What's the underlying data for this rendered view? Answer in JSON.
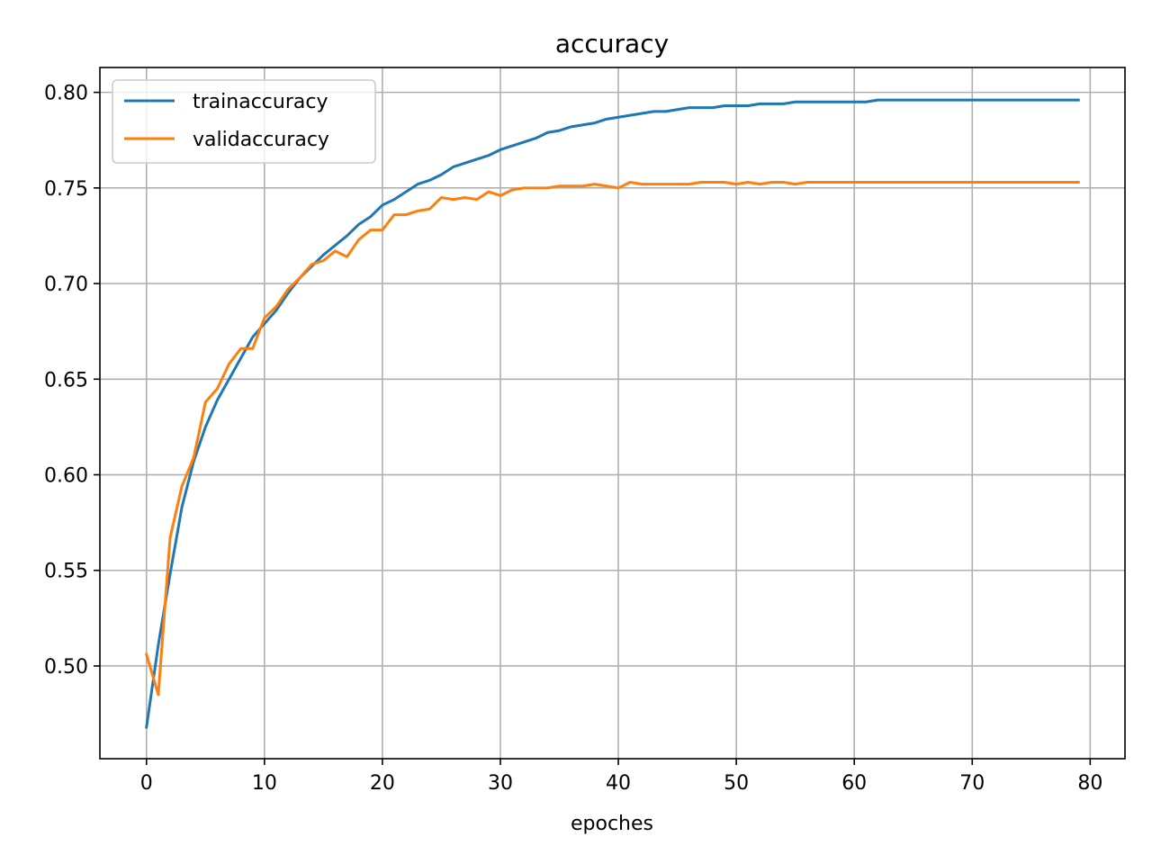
{
  "chart_data": {
    "type": "line",
    "title": "accuracy",
    "xlabel": "epoches",
    "ylabel": "",
    "xlim": [
      -3.95,
      82.95
    ],
    "ylim": [
      0.4515,
      0.813
    ],
    "xticks": [
      0,
      10,
      20,
      30,
      40,
      50,
      60,
      70,
      80
    ],
    "xtick_labels": [
      "0",
      "10",
      "20",
      "30",
      "40",
      "50",
      "60",
      "70",
      "80"
    ],
    "yticks": [
      0.5,
      0.55,
      0.6,
      0.65,
      0.7,
      0.75,
      0.8
    ],
    "ytick_labels": [
      "0.50",
      "0.55",
      "0.60",
      "0.65",
      "0.70",
      "0.75",
      "0.80"
    ],
    "grid": true,
    "legend": "upper left",
    "series": [
      {
        "name": "trainaccuracy",
        "color": "#1f77b4",
        "values": [
          0.468,
          0.511,
          0.548,
          0.583,
          0.607,
          0.625,
          0.639,
          0.65,
          0.661,
          0.672,
          0.679,
          0.686,
          0.695,
          0.703,
          0.709,
          0.715,
          0.72,
          0.725,
          0.731,
          0.735,
          0.741,
          0.744,
          0.748,
          0.752,
          0.754,
          0.757,
          0.761,
          0.763,
          0.765,
          0.767,
          0.77,
          0.772,
          0.774,
          0.776,
          0.779,
          0.78,
          0.782,
          0.783,
          0.784,
          0.786,
          0.787,
          0.788,
          0.789,
          0.79,
          0.79,
          0.791,
          0.792,
          0.792,
          0.792,
          0.793,
          0.793,
          0.793,
          0.794,
          0.794,
          0.794,
          0.795,
          0.795,
          0.795,
          0.795,
          0.795,
          0.795,
          0.795,
          0.796,
          0.796,
          0.796,
          0.796,
          0.796,
          0.796,
          0.796,
          0.796,
          0.796,
          0.796,
          0.796,
          0.796,
          0.796,
          0.796,
          0.796,
          0.796,
          0.796,
          0.796
        ]
      },
      {
        "name": "validaccuracy",
        "color": "#ff7f0e",
        "values": [
          0.506,
          0.485,
          0.567,
          0.594,
          0.609,
          0.638,
          0.645,
          0.658,
          0.666,
          0.666,
          0.682,
          0.688,
          0.697,
          0.703,
          0.71,
          0.712,
          0.717,
          0.714,
          0.723,
          0.728,
          0.728,
          0.736,
          0.736,
          0.738,
          0.739,
          0.745,
          0.744,
          0.745,
          0.744,
          0.748,
          0.746,
          0.749,
          0.75,
          0.75,
          0.75,
          0.751,
          0.751,
          0.751,
          0.752,
          0.751,
          0.75,
          0.753,
          0.752,
          0.752,
          0.752,
          0.752,
          0.752,
          0.753,
          0.753,
          0.753,
          0.752,
          0.753,
          0.752,
          0.753,
          0.753,
          0.752,
          0.753,
          0.753,
          0.753,
          0.753,
          0.753,
          0.753,
          0.753,
          0.753,
          0.753,
          0.753,
          0.753,
          0.753,
          0.753,
          0.753,
          0.753,
          0.753,
          0.753,
          0.753,
          0.753,
          0.753,
          0.753,
          0.753,
          0.753,
          0.753
        ]
      }
    ]
  }
}
